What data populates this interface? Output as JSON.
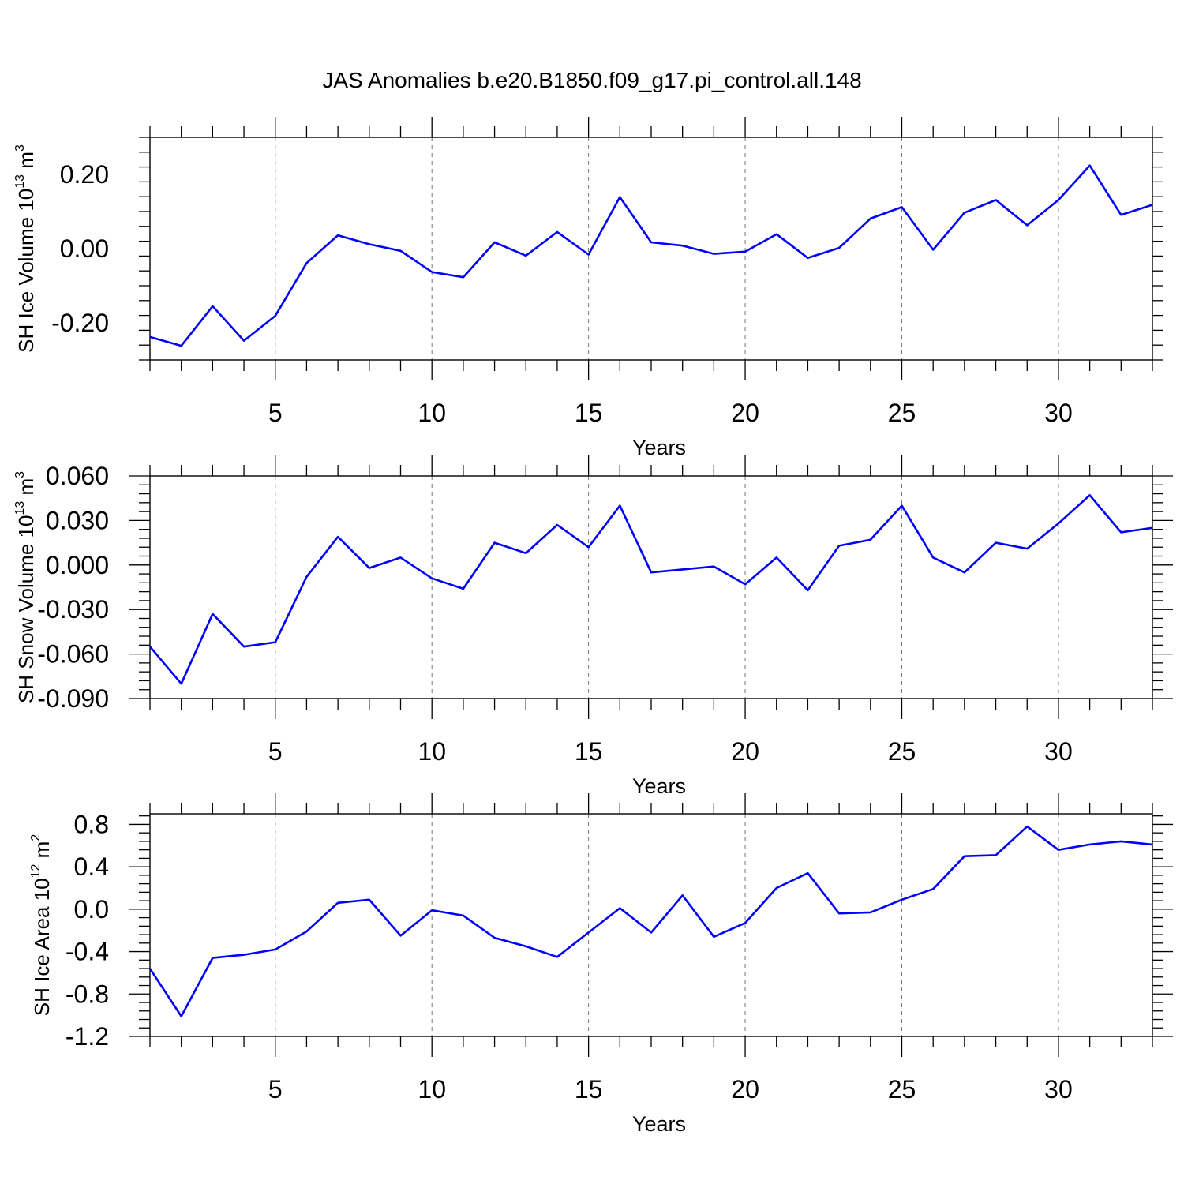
{
  "figure": {
    "title": "JAS Anomalies b.e20.B1850.f09_g17.pi_control.all.148",
    "line_color": "#0000ff"
  },
  "chart_data": [
    {
      "type": "line",
      "title": "",
      "xlabel": "Years",
      "ylabel": {
        "base": "SH Ice Volume 10",
        "exp": "13",
        "unit": " m",
        "unit_exp": "3"
      },
      "xlim": [
        1,
        33
      ],
      "ylim": [
        -0.3,
        0.3
      ],
      "xticks": [
        5,
        10,
        15,
        20,
        25,
        30
      ],
      "xtick_labels": [
        "5",
        "10",
        "15",
        "20",
        "25",
        "30"
      ],
      "yticks": [
        -0.2,
        0.0,
        0.2
      ],
      "ytick_labels": [
        "-0.20",
        "0.00",
        "0.20"
      ],
      "grid": "vertical dashed at major x ticks",
      "series": [
        {
          "name": "SH Ice Volume",
          "x": [
            1,
            2,
            3,
            4,
            5,
            6,
            7,
            8,
            9,
            10,
            11,
            12,
            13,
            14,
            15,
            16,
            17,
            18,
            19,
            20,
            21,
            22,
            23,
            24,
            25,
            26,
            27,
            28,
            29,
            30,
            31,
            32,
            33
          ],
          "values": [
            -0.238,
            -0.262,
            -0.155,
            -0.248,
            -0.181,
            -0.039,
            0.036,
            0.012,
            -0.006,
            -0.063,
            -0.077,
            0.017,
            -0.019,
            0.045,
            -0.016,
            0.139,
            0.017,
            0.008,
            -0.014,
            -0.008,
            0.039,
            -0.025,
            0.002,
            0.081,
            0.112,
            -0.003,
            0.097,
            0.131,
            0.063,
            0.131,
            0.224,
            0.091,
            0.118
          ]
        }
      ]
    },
    {
      "type": "line",
      "title": "",
      "xlabel": "Years",
      "ylabel": {
        "base": "SH Snow Volume 10",
        "exp": "13",
        "unit": " m",
        "unit_exp": "3"
      },
      "xlim": [
        1,
        33
      ],
      "ylim": [
        -0.09,
        0.06
      ],
      "xticks": [
        5,
        10,
        15,
        20,
        25,
        30
      ],
      "xtick_labels": [
        "5",
        "10",
        "15",
        "20",
        "25",
        "30"
      ],
      "yticks": [
        -0.09,
        -0.06,
        -0.03,
        0.0,
        0.03,
        0.06
      ],
      "ytick_labels": [
        "-0.090",
        "-0.060",
        "-0.030",
        "0.000",
        "0.030",
        "0.060"
      ],
      "grid": "vertical dashed at major x ticks",
      "series": [
        {
          "name": "SH Snow Volume",
          "x": [
            1,
            2,
            3,
            4,
            5,
            6,
            7,
            8,
            9,
            10,
            11,
            12,
            13,
            14,
            15,
            16,
            17,
            18,
            19,
            20,
            21,
            22,
            23,
            24,
            25,
            26,
            27,
            28,
            29,
            30,
            31,
            32,
            33
          ],
          "values": [
            -0.055,
            -0.08,
            -0.033,
            -0.055,
            -0.052,
            -0.008,
            0.019,
            -0.002,
            0.005,
            -0.009,
            -0.016,
            0.015,
            0.008,
            0.027,
            0.012,
            0.04,
            -0.005,
            -0.003,
            -0.001,
            -0.013,
            0.005,
            -0.017,
            0.013,
            0.017,
            0.04,
            0.005,
            -0.005,
            0.015,
            0.011,
            0.028,
            0.047,
            0.022,
            0.025
          ]
        }
      ]
    },
    {
      "type": "line",
      "title": "",
      "xlabel": "Years",
      "ylabel": {
        "base": "SH Ice Area 10",
        "exp": "12",
        "unit": " m",
        "unit_exp": "2"
      },
      "xlim": [
        1,
        33
      ],
      "ylim": [
        -1.2,
        0.9
      ],
      "xticks": [
        5,
        10,
        15,
        20,
        25,
        30
      ],
      "xtick_labels": [
        "5",
        "10",
        "15",
        "20",
        "25",
        "30"
      ],
      "yticks": [
        -1.2,
        -0.8,
        -0.4,
        0.0,
        0.4,
        0.8
      ],
      "ytick_labels": [
        "-1.2",
        "-0.8",
        "-0.4",
        "0.0",
        "0.4",
        "0.8"
      ],
      "grid": "vertical dashed at major x ticks",
      "series": [
        {
          "name": "SH Ice Area",
          "x": [
            1,
            2,
            3,
            4,
            5,
            6,
            7,
            8,
            9,
            10,
            11,
            12,
            13,
            14,
            15,
            16,
            17,
            18,
            19,
            20,
            21,
            22,
            23,
            24,
            25,
            26,
            27,
            28,
            29,
            30,
            31,
            32,
            33
          ],
          "values": [
            -0.56,
            -1.01,
            -0.46,
            -0.43,
            -0.38,
            -0.21,
            0.06,
            0.09,
            -0.25,
            -0.01,
            -0.06,
            -0.27,
            -0.35,
            -0.45,
            -0.22,
            0.01,
            -0.22,
            0.13,
            -0.26,
            -0.13,
            0.2,
            0.34,
            -0.04,
            -0.03,
            0.09,
            0.19,
            0.5,
            0.51,
            0.78,
            0.56,
            0.61,
            0.64,
            0.61
          ]
        }
      ]
    }
  ]
}
